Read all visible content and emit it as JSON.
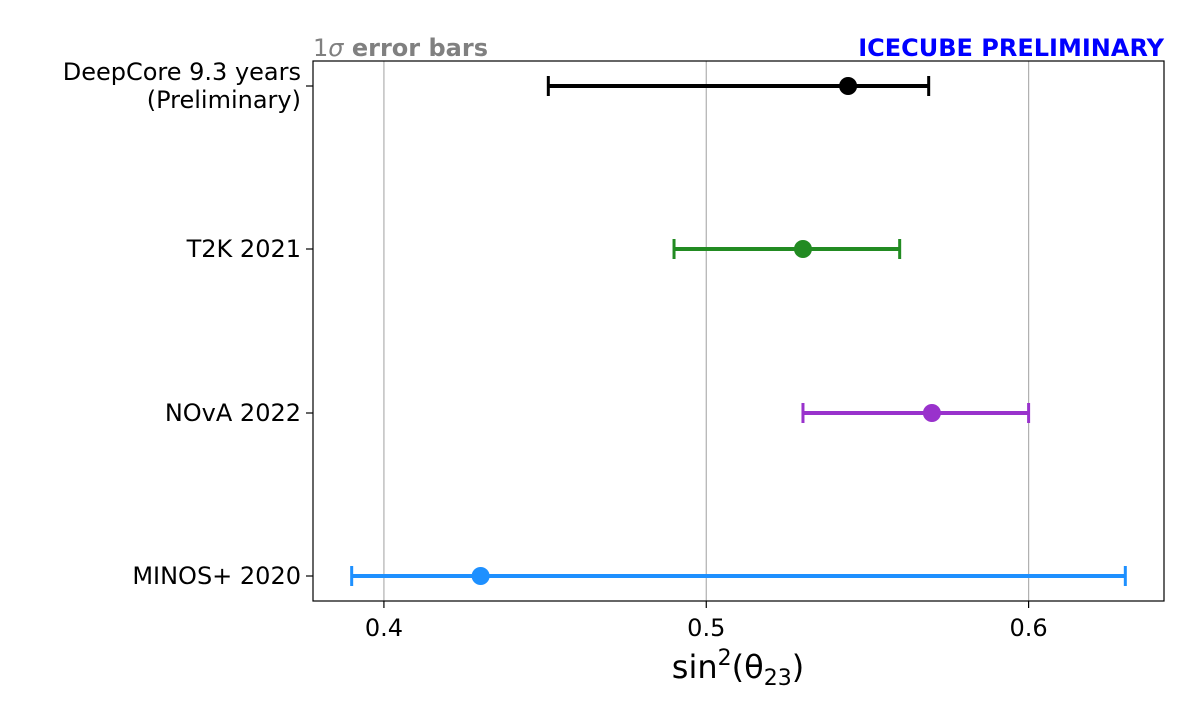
{
  "chart_data": {
    "type": "scatter",
    "title": "",
    "xlabel": "sin²(θ₂₃)",
    "xlabel_parts": {
      "base": "sin",
      "sup": "2",
      "open": "(θ",
      "sub": "23",
      "close": ")"
    },
    "ylabel": "",
    "xlim": [
      0.378,
      0.642
    ],
    "xticks": [
      0.4,
      0.5,
      0.6
    ],
    "xtick_labels": [
      "0.4",
      "0.5",
      "0.6"
    ],
    "grid": "vertical",
    "annotations": {
      "left": {
        "text": "1σ error bars",
        "prefix": "1",
        "sigma": "σ",
        "rest": " error bars",
        "color": "#808080"
      },
      "right": {
        "text": "ICECUBE PRELIMINARY",
        "color": "#0000ff"
      }
    },
    "series": [
      {
        "name": "DeepCore 9.3 years (Preliminary)",
        "label_lines": [
          "DeepCore 9.3 years",
          "(Preliminary)"
        ],
        "value": 0.544,
        "low": 0.451,
        "high": 0.569,
        "color": "#000000"
      },
      {
        "name": "T2K 2021",
        "label_lines": [
          "T2K 2021"
        ],
        "value": 0.53,
        "low": 0.49,
        "high": 0.56,
        "color": "#228b22"
      },
      {
        "name": "NOvA 2022",
        "label_lines": [
          "NOvA 2022"
        ],
        "value": 0.57,
        "low": 0.53,
        "high": 0.6,
        "color": "#9932cc"
      },
      {
        "name": "MINOS+ 2020",
        "label_lines": [
          "MINOS+ 2020"
        ],
        "value": 0.43,
        "low": 0.39,
        "high": 0.63,
        "color": "#1e90ff"
      }
    ]
  }
}
